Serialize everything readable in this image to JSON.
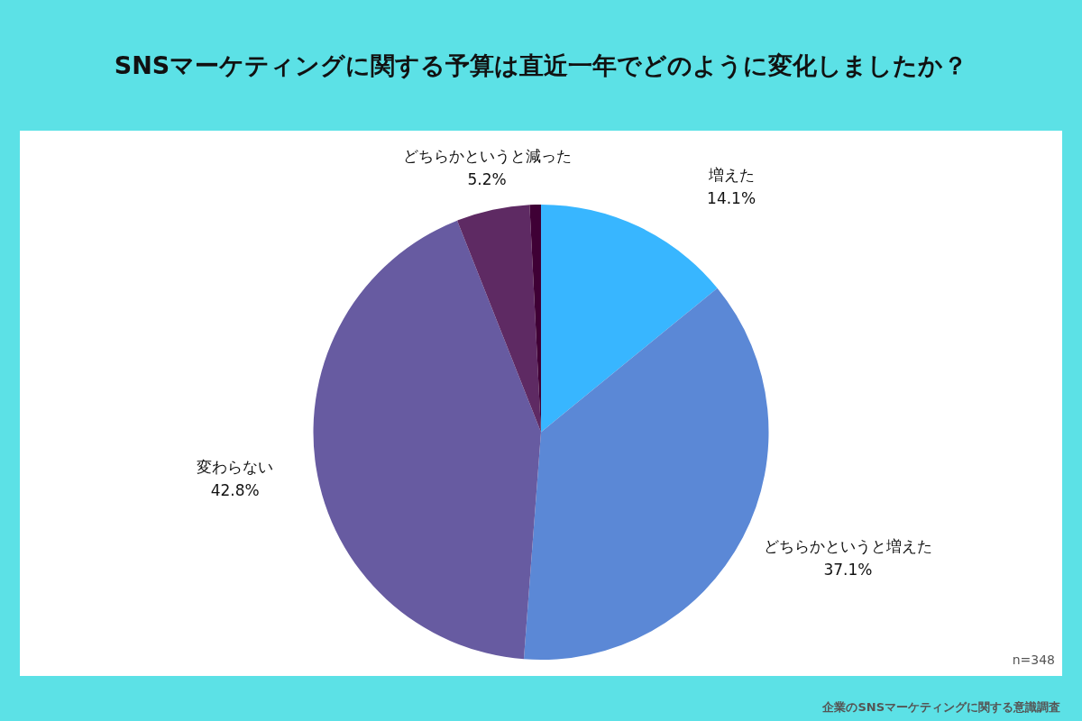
{
  "chart_data": {
    "type": "pie",
    "title": "SNSマーケティングに関する予算は直近一年でどのように変化しましたか？",
    "categories": [
      "増えた",
      "どちらかというと増えた",
      "変わらない",
      "どちらかというと減った",
      null
    ],
    "values": [
      14.1,
      37.1,
      42.8,
      5.2,
      0.8
    ],
    "value_labels": [
      "14.1%",
      "37.1%",
      "42.8%",
      "5.2%",
      null
    ],
    "colors": [
      "#38b6ff",
      "#5b88d6",
      "#675ba1",
      "#5e2a63",
      "#3f0035"
    ],
    "annotations": [
      "n=348",
      "企業のSNSマーケティングに関する意識調査"
    ],
    "legend": false
  }
}
